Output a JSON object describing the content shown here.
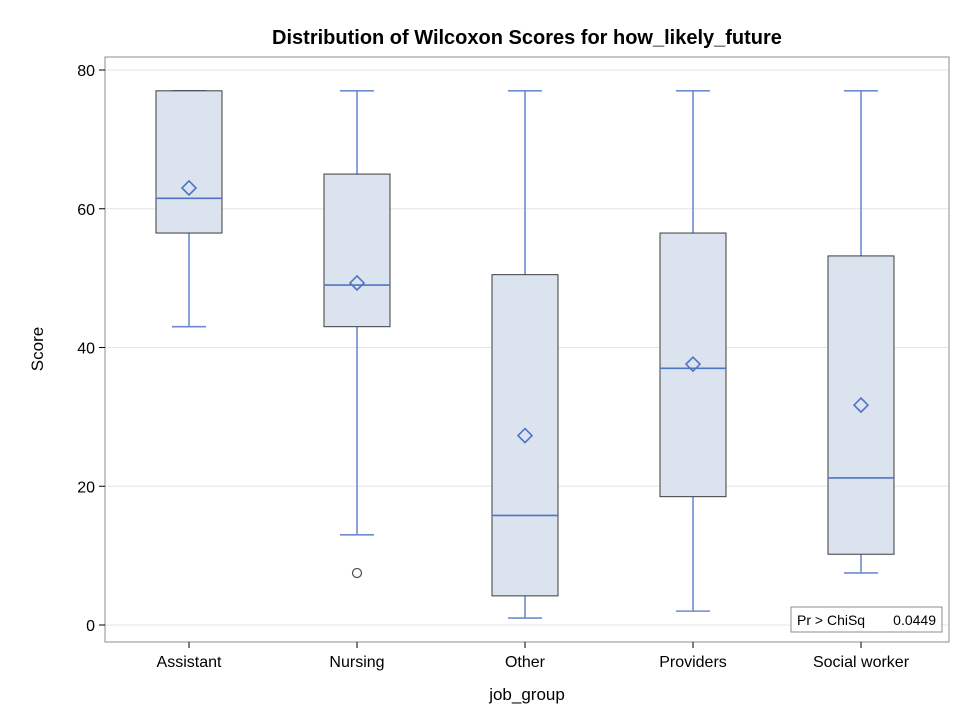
{
  "chart_data": {
    "type": "boxplot",
    "title": "Distribution of Wilcoxon Scores for how_likely_future",
    "xlabel": "job_group",
    "ylabel": "Score",
    "ylim": [
      0,
      80
    ],
    "yticks": [
      0,
      20,
      40,
      60,
      80
    ],
    "grid": true,
    "categories": [
      "Assistant",
      "Nursing",
      "Other",
      "Providers",
      "Social worker"
    ],
    "boxes": [
      {
        "category": "Assistant",
        "whisker_low": 43,
        "q1": 56.5,
        "median": 61.5,
        "q3": 77,
        "whisker_high": 77,
        "mean": 63,
        "outliers": []
      },
      {
        "category": "Nursing",
        "whisker_low": 13,
        "q1": 43,
        "median": 49,
        "q3": 65,
        "whisker_high": 77,
        "mean": 49.3,
        "outliers": [
          7.5
        ]
      },
      {
        "category": "Other",
        "whisker_low": 1,
        "q1": 4.2,
        "median": 15.8,
        "q3": 50.5,
        "whisker_high": 77,
        "mean": 27.3,
        "outliers": []
      },
      {
        "category": "Providers",
        "whisker_low": 2,
        "q1": 18.5,
        "median": 37,
        "q3": 56.5,
        "whisker_high": 77,
        "mean": 37.6,
        "outliers": []
      },
      {
        "category": "Social worker",
        "whisker_low": 7.5,
        "q1": 10.2,
        "median": 21.2,
        "q3": 53.2,
        "whisker_high": 77,
        "mean": 31.7,
        "outliers": []
      }
    ],
    "inset": {
      "label": "Pr > ChiSq",
      "value": "0.0449",
      "placement": "bottom-right"
    },
    "colors": {
      "box_fill": "#dbe3ee",
      "box_stroke": "#3c3c3c",
      "whisker": "#6d8ccf",
      "median": "#4f74c4",
      "mean_marker": "#4f74c4",
      "outlier": "#555555",
      "grid": "#e6e6e6"
    }
  }
}
